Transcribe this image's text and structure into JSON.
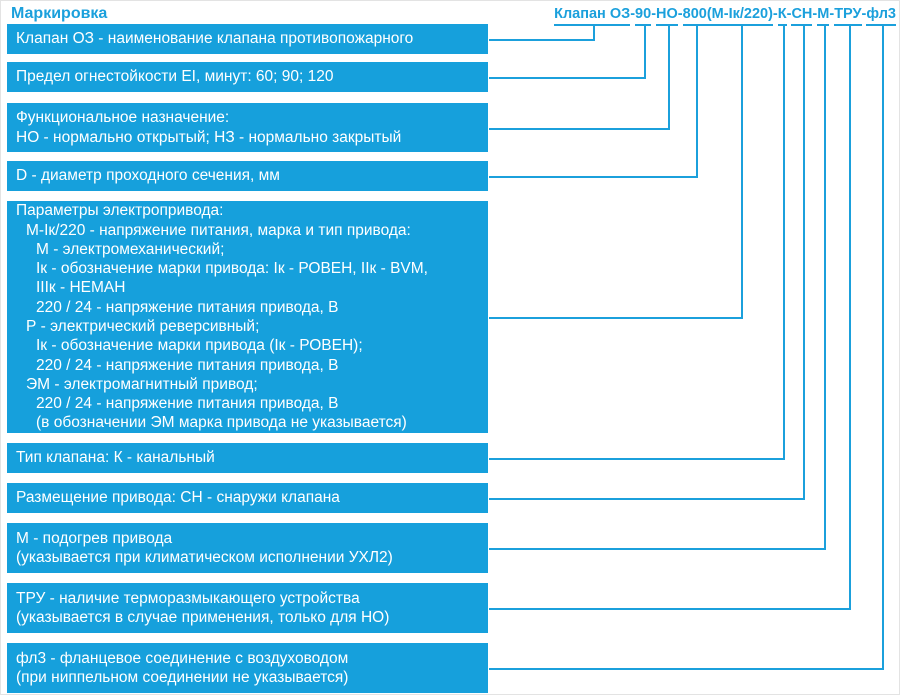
{
  "colors": {
    "accent": "#1BA0DC",
    "box_fill": "#16A0DC",
    "box_text": "#ffffff",
    "background": "#ffffff"
  },
  "title": "Маркировка",
  "formula": {
    "full_text": "Клапан ОЗ-90-НО-800(М-Iк/220)-К-СН-М-ТРУ-фл3",
    "separator": "-",
    "segments": [
      {
        "text": "Клапан ОЗ",
        "sep_before": false
      },
      {
        "text": "90",
        "sep_before": true
      },
      {
        "text": "НО",
        "sep_before": true
      },
      {
        "text": "800",
        "sep_before": true
      },
      {
        "text": "(М-Iк/220)",
        "sep_before": false
      },
      {
        "text": "К",
        "sep_before": true
      },
      {
        "text": "СН",
        "sep_before": true
      },
      {
        "text": "М",
        "sep_before": true
      },
      {
        "text": "ТРУ",
        "sep_before": true
      },
      {
        "text": "фл3",
        "sep_before": true
      }
    ]
  },
  "boxes": [
    {
      "name": "valve-name",
      "lines": [
        "Клапан ОЗ - наименование клапана противопожарного"
      ]
    },
    {
      "name": "fire-resistance",
      "lines": [
        "Предел огнестойкости EI, минут: 60; 90; 120"
      ]
    },
    {
      "name": "functional-purpose",
      "lines": [
        "Функциональное назначение:",
        "НО - нормально открытый; НЗ - нормально закрытый"
      ]
    },
    {
      "name": "diameter",
      "lines": [
        "D - диаметр проходного сечения, мм"
      ]
    },
    {
      "name": "drive-parameters",
      "lines": [
        "Параметры электропривода:",
        "М-Iк/220 - напряжение питания, марка и тип привода:",
        "М - электромеханический;",
        "Iк - обозначение марки привода: Iк - РОВЕН, IIк - BVM,",
        "IIIк - НЕМАН",
        "220 / 24 - напряжение питания привода, В",
        "Р - электрический реверсивный;",
        "Iк - обозначение марки привода (Iк - РОВЕН);",
        "220 / 24 - напряжение питания привода, В",
        "ЭМ - электромагнитный привод;",
        "220 / 24 - напряжение питания привода, В",
        "(в обозначении ЭМ марка привода не указывается)"
      ]
    },
    {
      "name": "valve-type",
      "lines": [
        "Тип клапана: К - канальный"
      ]
    },
    {
      "name": "drive-placement",
      "lines": [
        "Размещение привода: СН - снаружи клапана"
      ]
    },
    {
      "name": "drive-heating",
      "lines": [
        "М - подогрев привода",
        "(указывается при климатическом исполнении УХЛ2)"
      ]
    },
    {
      "name": "thermal-release",
      "lines": [
        "ТРУ - наличие терморазмыкающего устройства",
        "(указывается в случае применения, только для НО)"
      ]
    },
    {
      "name": "flange-connection",
      "lines": [
        "фл3 - фланцевое соединение с воздуховодом",
        "(при ниппельном соединении не указывается)"
      ]
    }
  ]
}
